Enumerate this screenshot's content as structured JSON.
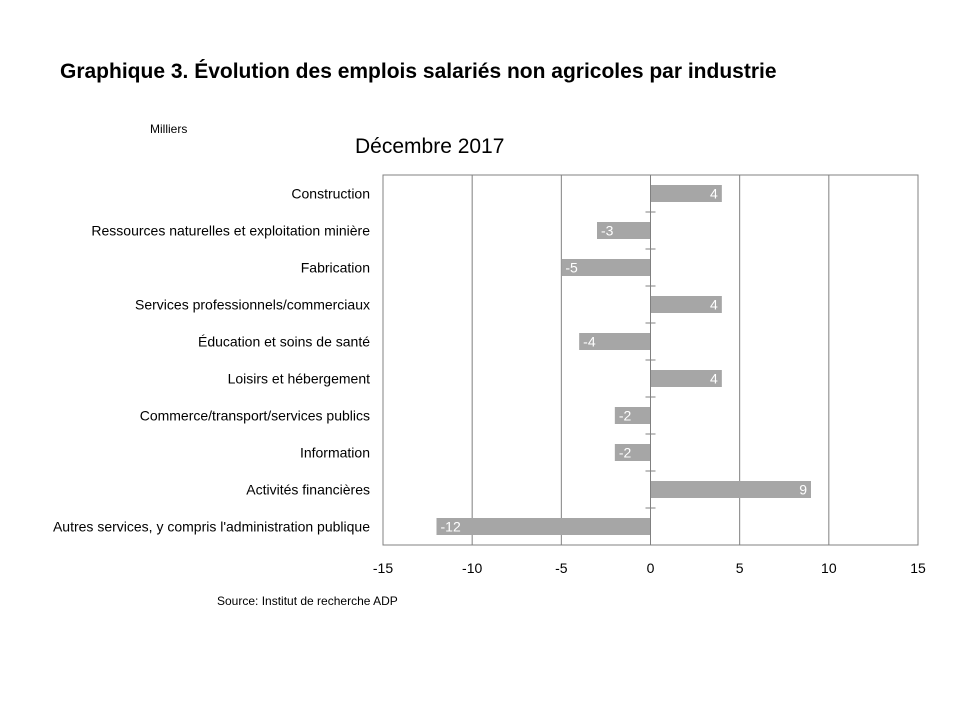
{
  "header": {
    "title": "Graphique 3. Évolution des emplois salariés non agricoles par industrie",
    "units": "Milliers"
  },
  "footer": {
    "source": "Source: Institut de recherche ADP"
  },
  "chart_data": {
    "type": "bar",
    "orientation": "horizontal",
    "title": "Décembre 2017",
    "ylabel": "Milliers",
    "xlabel": "",
    "xlim": [
      -15,
      15
    ],
    "xticks": [
      -15,
      -10,
      -5,
      0,
      5,
      10,
      15
    ],
    "grid": true,
    "categories": [
      "Construction",
      "Ressources naturelles et exploitation minière",
      "Fabrication",
      "Services professionnels/commerciaux",
      "Éducation et soins de santé",
      "Loisirs et hébergement",
      "Commerce/transport/services publics",
      "Information",
      "Activités financières",
      "Autres services, y compris l'administration publique"
    ],
    "values": [
      4,
      -3,
      -5,
      4,
      -4,
      4,
      -2,
      -2,
      9,
      -12
    ],
    "bar_color": "#a6a6a6",
    "grid_color": "#808080",
    "label_color": "#ffffff"
  }
}
